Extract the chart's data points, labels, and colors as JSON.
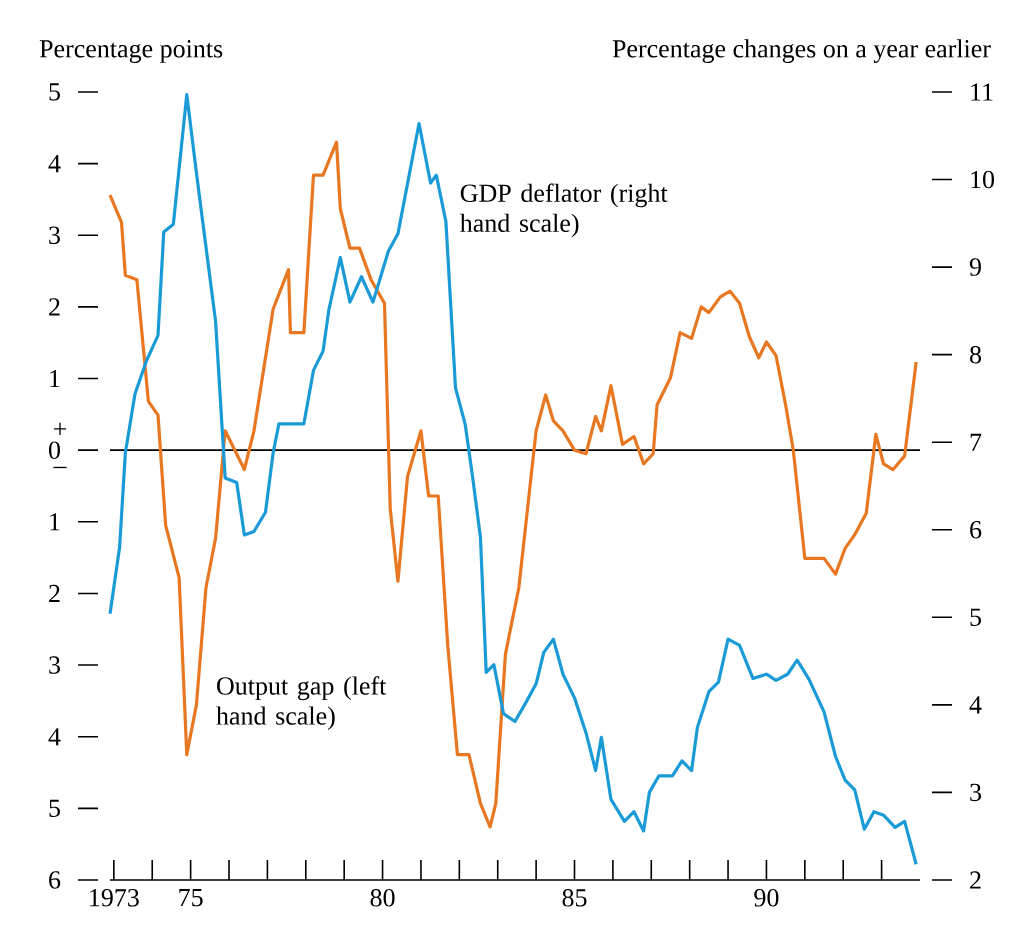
{
  "chart_data": {
    "type": "line",
    "ylabel": "Percentage points",
    "y2label": "Percentage changes on a year earlier",
    "annotations": [
      "+",
      "–"
    ],
    "xlim": [
      1972.9,
      1994
    ],
    "xticks": [
      {
        "value": 1973,
        "label": "1973"
      },
      {
        "value": 1974,
        "label": null
      },
      {
        "value": 1975,
        "label": "75"
      },
      {
        "value": 1976,
        "label": null
      },
      {
        "value": 1977,
        "label": null
      },
      {
        "value": 1978,
        "label": null
      },
      {
        "value": 1979,
        "label": null
      },
      {
        "value": 1980,
        "label": "80"
      },
      {
        "value": 1981,
        "label": null
      },
      {
        "value": 1982,
        "label": null
      },
      {
        "value": 1983,
        "label": null
      },
      {
        "value": 1984,
        "label": null
      },
      {
        "value": 1985,
        "label": "85"
      },
      {
        "value": 1986,
        "label": null
      },
      {
        "value": 1987,
        "label": null
      },
      {
        "value": 1988,
        "label": null
      },
      {
        "value": 1989,
        "label": null
      },
      {
        "value": 1990,
        "label": "90"
      },
      {
        "value": 1991,
        "label": null
      },
      {
        "value": 1992,
        "label": null
      },
      {
        "value": 1993,
        "label": null
      }
    ],
    "ylim": [
      -6,
      5
    ],
    "yticks": [
      {
        "value": -6,
        "label": "6"
      },
      {
        "value": -5,
        "label": "5"
      },
      {
        "value": -4,
        "label": "4"
      },
      {
        "value": -3,
        "label": "3"
      },
      {
        "value": -2,
        "label": "2"
      },
      {
        "value": -1,
        "label": "1"
      },
      0,
      1,
      2,
      3,
      4,
      5
    ],
    "y2lim": [
      2,
      11
    ],
    "y2ticks": [
      2,
      3,
      4,
      5,
      6,
      7,
      8,
      9,
      10,
      11
    ],
    "ref_lines": [
      {
        "axis": "y",
        "value": 0,
        "color": "#000000"
      }
    ],
    "line_style": "solid",
    "series": [
      {
        "name": "Output gap (left hand scale)",
        "color": "#e87722",
        "x": [
          1972.9,
          1973.2,
          1973.3,
          1973.6,
          1973.9,
          1974.15,
          1974.35,
          1974.7,
          1974.9,
          1975.15,
          1975.4,
          1975.65,
          1975.9,
          1976.4,
          1976.65,
          1977.15,
          1977.55,
          1977.6,
          1977.95,
          1978.2,
          1978.45,
          1978.8,
          1978.9,
          1979.15,
          1979.4,
          1979.7,
          1980.05,
          1980.2,
          1980.4,
          1980.65,
          1981.0,
          1981.2,
          1981.45,
          1981.7,
          1981.95,
          1982.25,
          1982.55,
          1982.8,
          1982.95,
          1983.2,
          1983.55,
          1984.0,
          1984.25,
          1984.45,
          1984.7,
          1985.0,
          1985.3,
          1985.55,
          1985.7,
          1985.95,
          1986.25,
          1986.55,
          1986.8,
          1987.05,
          1987.15,
          1987.5,
          1987.75,
          1988.05,
          1988.3,
          1988.5,
          1988.8,
          1989.05,
          1989.3,
          1989.55,
          1989.8,
          1990.0,
          1990.25,
          1990.5,
          1990.7,
          1991.0,
          1991.5,
          1991.8,
          1992.05,
          1992.3,
          1992.6,
          1992.85,
          1993.05,
          1993.3,
          1993.6,
          1993.9
        ],
        "values": [
          3.56,
          3.18,
          2.44,
          2.38,
          0.68,
          0.49,
          -1.05,
          -1.78,
          -4.25,
          -3.56,
          -1.92,
          -1.23,
          0.27,
          -0.27,
          0.27,
          1.97,
          2.52,
          1.64,
          1.64,
          3.84,
          3.84,
          4.3,
          3.37,
          2.82,
          2.82,
          2.38,
          2.05,
          -0.82,
          -1.83,
          -0.37,
          0.27,
          -0.64,
          -0.64,
          -2.74,
          -4.25,
          -4.25,
          -4.93,
          -5.26,
          -4.93,
          -2.85,
          -1.92,
          0.27,
          0.77,
          0.41,
          0.27,
          0,
          -0.05,
          0.47,
          0.27,
          0.9,
          0.08,
          0.19,
          -0.19,
          -0.05,
          0.63,
          1.01,
          1.64,
          1.56,
          2.0,
          1.92,
          2.14,
          2.22,
          2.05,
          1.59,
          1.29,
          1.51,
          1.32,
          0.63,
          0,
          -1.51,
          -1.51,
          -1.73,
          -1.37,
          -1.18,
          -0.88,
          0.22,
          -0.19,
          -0.27,
          -0.08,
          1.23
        ]
      },
      {
        "name": "GDP deflator (right hand scale)",
        "color": "#1a9bd7",
        "axis": "y2",
        "x": [
          1972.9,
          1973.15,
          1973.3,
          1973.55,
          1973.85,
          1974.15,
          1974.3,
          1974.55,
          1974.9,
          1975.15,
          1975.65,
          1975.9,
          1976.2,
          1976.4,
          1976.65,
          1976.95,
          1977.15,
          1977.3,
          1977.95,
          1978.2,
          1978.45,
          1978.6,
          1978.9,
          1979.15,
          1979.45,
          1979.75,
          1980.15,
          1980.4,
          1980.95,
          1981.25,
          1981.4,
          1981.65,
          1981.9,
          1982.15,
          1982.35,
          1982.55,
          1982.7,
          1982.9,
          1983.15,
          1983.45,
          1983.75,
          1984.0,
          1984.2,
          1984.45,
          1984.7,
          1985.0,
          1985.3,
          1985.55,
          1985.7,
          1985.95,
          1986.3,
          1986.55,
          1986.8,
          1986.95,
          1987.2,
          1987.55,
          1987.8,
          1988.05,
          1988.2,
          1988.5,
          1988.75,
          1989.0,
          1989.3,
          1989.65,
          1990.0,
          1990.25,
          1990.55,
          1990.8,
          1991.1,
          1991.5,
          1991.8,
          1992.05,
          1992.3,
          1992.55,
          1992.8,
          1993.05,
          1993.35,
          1993.6,
          1993.9
        ],
        "values": [
          5.04,
          5.8,
          6.88,
          7.55,
          7.93,
          8.22,
          9.4,
          9.49,
          10.97,
          10.08,
          8.38,
          6.59,
          6.54,
          5.94,
          5.98,
          6.2,
          6.88,
          7.21,
          7.21,
          7.82,
          8.04,
          8.51,
          9.11,
          8.6,
          8.89,
          8.6,
          9.18,
          9.38,
          10.64,
          9.96,
          10.05,
          9.52,
          7.62,
          7.21,
          6.59,
          5.91,
          4.37,
          4.46,
          3.9,
          3.81,
          4.04,
          4.24,
          4.6,
          4.75,
          4.35,
          4.08,
          3.68,
          3.25,
          3.63,
          2.92,
          2.67,
          2.78,
          2.56,
          3.0,
          3.19,
          3.19,
          3.36,
          3.25,
          3.74,
          4.15,
          4.26,
          4.75,
          4.68,
          4.3,
          4.35,
          4.28,
          4.35,
          4.51,
          4.3,
          3.92,
          3.41,
          3.14,
          3.03,
          2.58,
          2.78,
          2.74,
          2.6,
          2.67,
          2.18
        ]
      }
    ]
  }
}
